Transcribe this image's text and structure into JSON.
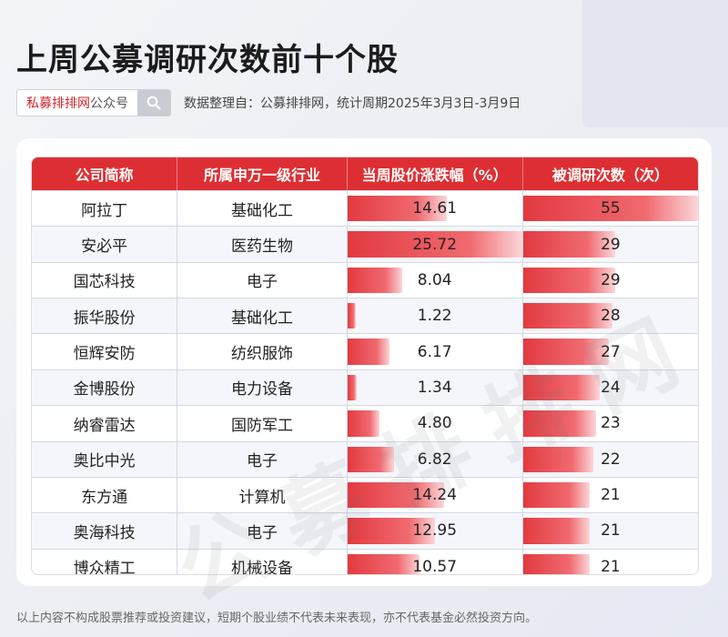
{
  "title": "上周公募调研次数前十个股",
  "search": {
    "brand": "私募排排网",
    "suffix": "公众号"
  },
  "source_note": "数据整理自：公募排排网，统计周期2025年3月3日-3月9日",
  "watermark": "公募排排网",
  "footer": "以上内容不构成股票推荐或投资建议，短期个股业绩不代表未来表现，亦不代表基金必然投资方向。",
  "colors": {
    "header": "#dd2f33",
    "bar": "#e23a40"
  },
  "chart_data": {
    "type": "table",
    "columns": [
      "公司简称",
      "所属申万一级行业",
      "当周股价涨跌幅（%）",
      "被调研次数（次）"
    ],
    "rows": [
      {
        "company": "阿拉丁",
        "industry": "基础化工",
        "change": 14.61,
        "change_text": "14.61",
        "count": 55,
        "count_text": "55"
      },
      {
        "company": "安必平",
        "industry": "医药生物",
        "change": 25.72,
        "change_text": "25.72",
        "count": 29,
        "count_text": "29"
      },
      {
        "company": "国芯科技",
        "industry": "电子",
        "change": 8.04,
        "change_text": "8.04",
        "count": 29,
        "count_text": "29"
      },
      {
        "company": "振华股份",
        "industry": "基础化工",
        "change": 1.22,
        "change_text": "1.22",
        "count": 28,
        "count_text": "28"
      },
      {
        "company": "恒辉安防",
        "industry": "纺织服饰",
        "change": 6.17,
        "change_text": "6.17",
        "count": 27,
        "count_text": "27"
      },
      {
        "company": "金博股份",
        "industry": "电力设备",
        "change": 1.34,
        "change_text": "1.34",
        "count": 24,
        "count_text": "24"
      },
      {
        "company": "纳睿雷达",
        "industry": "国防军工",
        "change": 4.8,
        "change_text": "4.80",
        "count": 23,
        "count_text": "23"
      },
      {
        "company": "奥比中光",
        "industry": "电子",
        "change": 6.82,
        "change_text": "6.82",
        "count": 22,
        "count_text": "22"
      },
      {
        "company": "东方通",
        "industry": "计算机",
        "change": 14.24,
        "change_text": "14.24",
        "count": 21,
        "count_text": "21"
      },
      {
        "company": "奥海科技",
        "industry": "电子",
        "change": 12.95,
        "change_text": "12.95",
        "count": 21,
        "count_text": "21"
      },
      {
        "company": "博众精工",
        "industry": "机械设备",
        "change": 10.57,
        "change_text": "10.57",
        "count": 21,
        "count_text": "21"
      }
    ]
  }
}
